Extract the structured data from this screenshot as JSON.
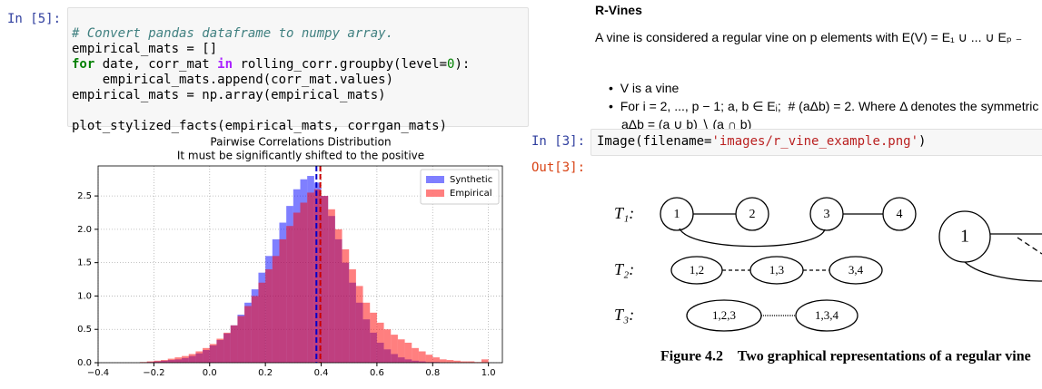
{
  "left_cell": {
    "prompt": "In [5]:",
    "code": [
      [
        "# Convert pandas dataframe to numpy array."
      ],
      [
        "empirical_mats = []"
      ],
      [
        "for",
        " date, corr_mat ",
        "in",
        " rolling_corr.groupby(level=",
        "0",
        "):"
      ],
      [
        "    empirical_mats.append(corr_mat.values)"
      ],
      [
        "empirical_mats = np.array(empirical_mats)"
      ],
      [
        "plot_stylized_facts(empirical_mats, corrgan_mats)"
      ]
    ]
  },
  "chart_data": {
    "type": "histogram",
    "title": "Pairwise Correlations Distribution",
    "subtitle": "It must be significantly shifted to the positive",
    "bins": [
      -0.3,
      -0.275,
      -0.25,
      -0.225,
      -0.2,
      -0.175,
      -0.15,
      -0.125,
      -0.1,
      -0.075,
      -0.05,
      -0.025,
      0,
      0.025,
      0.05,
      0.075,
      0.1,
      0.125,
      0.15,
      0.175,
      0.2,
      0.225,
      0.25,
      0.275,
      0.3,
      0.325,
      0.35,
      0.375,
      0.4,
      0.425,
      0.45,
      0.475,
      0.5,
      0.525,
      0.55,
      0.575,
      0.6,
      0.625,
      0.65,
      0.675,
      0.7,
      0.725,
      0.75,
      0.775,
      0.8,
      0.825,
      0.85,
      0.875,
      0.9,
      0.925,
      0.95,
      0.975,
      1.0
    ],
    "series": [
      {
        "name": "Synthetic",
        "color": "#0000ff",
        "values": [
          0,
          0,
          0,
          0.01,
          0.02,
          0.03,
          0.04,
          0.05,
          0.07,
          0.1,
          0.14,
          0.19,
          0.26,
          0.34,
          0.44,
          0.56,
          0.72,
          0.9,
          1.1,
          1.35,
          1.6,
          1.85,
          2.1,
          2.35,
          2.6,
          2.75,
          2.8,
          2.7,
          2.5,
          2.2,
          1.85,
          1.5,
          1.2,
          0.9,
          0.65,
          0.45,
          0.3,
          0.2,
          0.13,
          0.08,
          0.05,
          0.03,
          0.02,
          0.01,
          0.01,
          0,
          0,
          0,
          0,
          0,
          0,
          0
        ]
      },
      {
        "name": "Empirical",
        "color": "#ff0000",
        "values": [
          0,
          0,
          0.01,
          0.02,
          0.03,
          0.04,
          0.06,
          0.08,
          0.1,
          0.13,
          0.17,
          0.22,
          0.28,
          0.36,
          0.45,
          0.56,
          0.7,
          0.85,
          1.0,
          1.2,
          1.4,
          1.6,
          1.85,
          2.05,
          2.25,
          2.4,
          2.55,
          2.6,
          2.5,
          2.3,
          2.0,
          1.7,
          1.4,
          1.15,
          0.9,
          0.75,
          0.6,
          0.5,
          0.42,
          0.35,
          0.3,
          0.22,
          0.17,
          0.12,
          0.08,
          0.05,
          0.04,
          0.03,
          0.02,
          0.02,
          0.01,
          0.05
        ]
      }
    ],
    "mean_lines": [
      {
        "value": 0.383,
        "color": "#0000cc"
      },
      {
        "value": 0.397,
        "color": "#cc0000"
      }
    ],
    "xlim": [
      -0.4,
      1.05
    ],
    "xticks": [
      {
        "value": -0.4,
        "label": "−0.4"
      },
      {
        "value": -0.2,
        "label": "−0.2"
      },
      {
        "value": 0,
        "label": "0.0"
      },
      0.2,
      0.4,
      0.6,
      0.8,
      {
        "value": 1,
        "label": "1.0"
      }
    ],
    "ylim": [
      0,
      2.95
    ],
    "yticks": [
      {
        "value": 0,
        "label": "0.0"
      },
      0.5,
      {
        "value": 1,
        "label": "1.0"
      },
      1.5,
      {
        "value": 2,
        "label": "2.0"
      },
      2.5
    ],
    "grid": true,
    "legend": "upper right"
  },
  "right": {
    "heading": "R-Vines",
    "paragraph": "A vine is considered a regular vine on p elements with E(V) = E₁ ∪ ... ∪ Eₚ ₋",
    "bullets": [
      "V is a vine",
      "For i = 2, ..., p − 1; a, b ∈ Eᵢ;  # (aΔb) = 2. Where Δ denotes the symmetric",
      "aΔb = (a ∪ b) ∖ (a ∩ b)"
    ],
    "cell": {
      "prompt": "In [3]:",
      "code": [
        "Image(filename=",
        "'images/r_vine_example.png'",
        ")"
      ],
      "out_prompt": "Out[3]:"
    },
    "figure": {
      "levels": [
        "T₁:",
        "T₂:",
        "T₃:"
      ],
      "tree1": [
        "1",
        "2",
        "3",
        "4"
      ],
      "tree2": [
        "1,2",
        "1,3",
        "3,4"
      ],
      "tree3": [
        "1,2,3",
        "1,3,4"
      ],
      "other": "1",
      "caption": "Figure 4.2    Two graphical representations of a regular vine"
    }
  }
}
